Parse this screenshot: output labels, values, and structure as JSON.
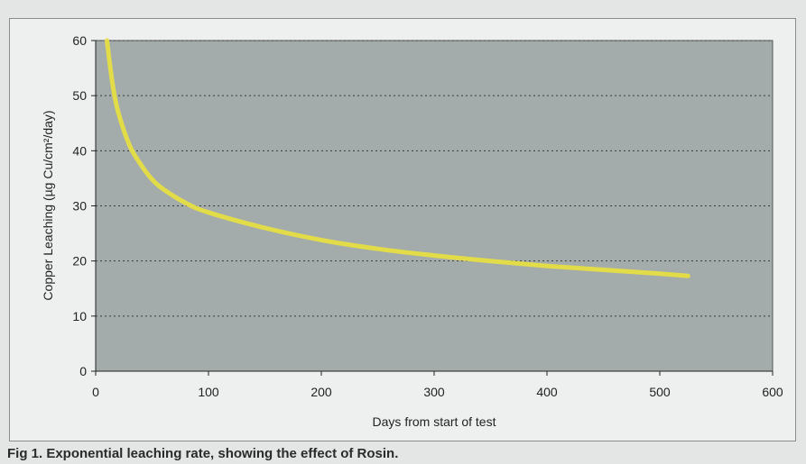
{
  "chart_data": {
    "type": "line",
    "title": "",
    "xlabel": "Days from start of test",
    "ylabel": "Copper Leaching (µg Cu/cm²/day)",
    "xlim": [
      0,
      600
    ],
    "ylim": [
      0,
      60
    ],
    "x_ticks": [
      "0",
      "100",
      "200",
      "300",
      "400",
      "500",
      "600"
    ],
    "y_ticks": [
      "0",
      "10",
      "20",
      "30",
      "40",
      "50",
      "60"
    ],
    "grid": "horizontal dotted",
    "legend": "none",
    "series": [
      {
        "color": "#e3dc49",
        "x": [
          10,
          15,
          20,
          30,
          40,
          50,
          60,
          80,
          100,
          150,
          200,
          250,
          300,
          350,
          400,
          450,
          500,
          525
        ],
        "y": [
          60,
          52,
          47,
          41,
          37.5,
          34.8,
          33,
          30.5,
          28.8,
          26,
          23.8,
          22.2,
          21,
          20,
          19.1,
          18.4,
          17.7,
          17.3
        ]
      }
    ]
  },
  "caption": "Fig 1. Exponential leaching rate, showing the effect of Rosin.",
  "colors": {
    "plot_background": "#a3acab",
    "line": "#e3dc49",
    "grid": "#3a3a3a",
    "figure_background": "#eef0f0"
  }
}
